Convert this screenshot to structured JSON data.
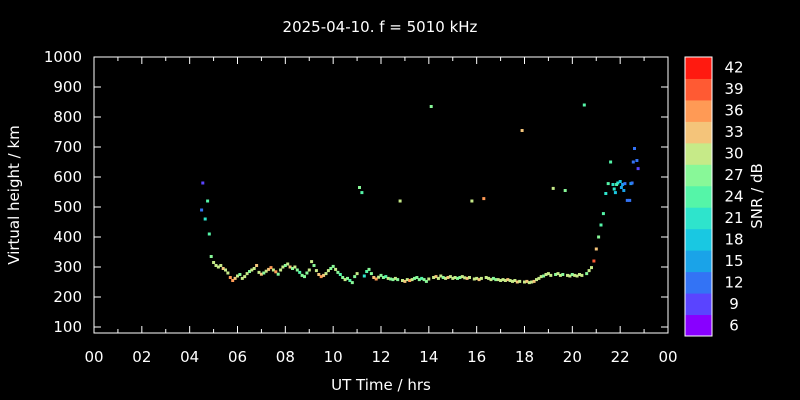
{
  "chart_data": {
    "type": "scatter",
    "title": "2025-04-10. f = 5010 kHz",
    "xlabel": "UT Time / hrs",
    "ylabel": "Virtual height / km",
    "xlim": [
      0,
      24
    ],
    "ylim": [
      80,
      1000
    ],
    "x_ticks": [
      "00",
      "02",
      "04",
      "06",
      "08",
      "10",
      "12",
      "14",
      "16",
      "18",
      "20",
      "22",
      "00"
    ],
    "y_ticks": [
      100,
      200,
      300,
      400,
      500,
      600,
      700,
      800,
      900,
      1000
    ],
    "colorbar": {
      "label": "SNR / dB",
      "range": [
        6,
        42
      ],
      "ticks": [
        6,
        9,
        12,
        15,
        18,
        21,
        24,
        27,
        30,
        33,
        36,
        39,
        42
      ],
      "colors": [
        "#8800ff",
        "#5a44ff",
        "#3373f5",
        "#1aa3e8",
        "#19c8e2",
        "#2ee4cc",
        "#55f5a8",
        "#88f898",
        "#c6ea88",
        "#f4c47a",
        "#ff9a55",
        "#ff5a33",
        "#ff1a10"
      ]
    },
    "points": [
      [
        4.55,
        580,
        10
      ],
      [
        4.5,
        490,
        12
      ],
      [
        4.65,
        460,
        22
      ],
      [
        4.75,
        520,
        24
      ],
      [
        4.82,
        410,
        25
      ],
      [
        4.9,
        335,
        27
      ],
      [
        5.0,
        315,
        30
      ],
      [
        5.1,
        305,
        30
      ],
      [
        5.2,
        300,
        29
      ],
      [
        5.3,
        305,
        30
      ],
      [
        5.4,
        295,
        33
      ],
      [
        5.5,
        290,
        31
      ],
      [
        5.6,
        280,
        30
      ],
      [
        5.7,
        265,
        36
      ],
      [
        5.8,
        255,
        36
      ],
      [
        5.9,
        262,
        33
      ],
      [
        6.0,
        270,
        30
      ],
      [
        6.1,
        275,
        28
      ],
      [
        6.2,
        262,
        30
      ],
      [
        6.3,
        268,
        29
      ],
      [
        6.4,
        278,
        30
      ],
      [
        6.5,
        285,
        28
      ],
      [
        6.6,
        290,
        30
      ],
      [
        6.7,
        295,
        29
      ],
      [
        6.8,
        305,
        33
      ],
      [
        6.9,
        282,
        30
      ],
      [
        7.0,
        276,
        33
      ],
      [
        7.1,
        280,
        28
      ],
      [
        7.2,
        286,
        30
      ],
      [
        7.3,
        292,
        33
      ],
      [
        7.4,
        298,
        36
      ],
      [
        7.5,
        290,
        31
      ],
      [
        7.6,
        284,
        36
      ],
      [
        7.7,
        276,
        28
      ],
      [
        7.8,
        290,
        29
      ],
      [
        7.9,
        300,
        30
      ],
      [
        8.0,
        305,
        28
      ],
      [
        8.1,
        310,
        30
      ],
      [
        8.2,
        300,
        33
      ],
      [
        8.3,
        295,
        28
      ],
      [
        8.4,
        300,
        29
      ],
      [
        8.5,
        290,
        27
      ],
      [
        8.6,
        282,
        24
      ],
      [
        8.7,
        272,
        26
      ],
      [
        8.8,
        268,
        27
      ],
      [
        8.9,
        280,
        28
      ],
      [
        9.0,
        290,
        30
      ],
      [
        9.1,
        318,
        29
      ],
      [
        9.2,
        305,
        27
      ],
      [
        9.3,
        288,
        30
      ],
      [
        9.4,
        275,
        33
      ],
      [
        9.5,
        268,
        36
      ],
      [
        9.6,
        272,
        33
      ],
      [
        9.7,
        278,
        30
      ],
      [
        9.8,
        288,
        29
      ],
      [
        9.9,
        295,
        28
      ],
      [
        10.0,
        302,
        27
      ],
      [
        10.1,
        292,
        30
      ],
      [
        10.2,
        282,
        28
      ],
      [
        10.3,
        275,
        24
      ],
      [
        10.4,
        265,
        26
      ],
      [
        10.5,
        258,
        29
      ],
      [
        10.6,
        262,
        27
      ],
      [
        10.7,
        255,
        24
      ],
      [
        10.8,
        248,
        27
      ],
      [
        10.9,
        268,
        28
      ],
      [
        11.0,
        278,
        29
      ],
      [
        11.1,
        565,
        27
      ],
      [
        11.2,
        548,
        24
      ],
      [
        11.3,
        270,
        21
      ],
      [
        11.4,
        285,
        24
      ],
      [
        11.5,
        292,
        27
      ],
      [
        11.6,
        278,
        28
      ],
      [
        11.7,
        265,
        33
      ],
      [
        11.8,
        260,
        36
      ],
      [
        11.9,
        266,
        30
      ],
      [
        12.0,
        272,
        28
      ],
      [
        12.1,
        265,
        27
      ],
      [
        12.2,
        268,
        24
      ],
      [
        12.3,
        262,
        30
      ],
      [
        12.4,
        260,
        27
      ],
      [
        12.5,
        258,
        28
      ],
      [
        12.6,
        262,
        29
      ],
      [
        12.7,
        258,
        27
      ],
      [
        12.8,
        520,
        29
      ],
      [
        12.9,
        255,
        30
      ],
      [
        13.0,
        252,
        33
      ],
      [
        13.1,
        258,
        30
      ],
      [
        13.2,
        255,
        36
      ],
      [
        13.3,
        258,
        30
      ],
      [
        13.4,
        262,
        28
      ],
      [
        13.5,
        265,
        27
      ],
      [
        13.6,
        258,
        26
      ],
      [
        13.7,
        262,
        24
      ],
      [
        13.8,
        258,
        28
      ],
      [
        13.9,
        252,
        27
      ],
      [
        14.0,
        260,
        29
      ],
      [
        14.1,
        835,
        27
      ],
      [
        14.2,
        265,
        30
      ],
      [
        14.3,
        268,
        33
      ],
      [
        14.4,
        262,
        30
      ],
      [
        14.5,
        270,
        29
      ],
      [
        14.6,
        265,
        28
      ],
      [
        14.7,
        262,
        30
      ],
      [
        14.8,
        265,
        33
      ],
      [
        14.9,
        268,
        30
      ],
      [
        15.0,
        262,
        29
      ],
      [
        15.1,
        265,
        30
      ],
      [
        15.2,
        262,
        27
      ],
      [
        15.3,
        265,
        28
      ],
      [
        15.4,
        268,
        29
      ],
      [
        15.5,
        264,
        30
      ],
      [
        15.6,
        262,
        33
      ],
      [
        15.7,
        265,
        31
      ],
      [
        15.8,
        520,
        30
      ],
      [
        15.9,
        260,
        29
      ],
      [
        16.0,
        262,
        30
      ],
      [
        16.1,
        258,
        33
      ],
      [
        16.2,
        262,
        30
      ],
      [
        16.3,
        528,
        36
      ],
      [
        16.4,
        265,
        30
      ],
      [
        16.5,
        262,
        29
      ],
      [
        16.6,
        258,
        30
      ],
      [
        16.7,
        262,
        27
      ],
      [
        16.8,
        258,
        28
      ],
      [
        16.9,
        258,
        29
      ],
      [
        17.0,
        255,
        30
      ],
      [
        17.1,
        258,
        31
      ],
      [
        17.2,
        255,
        30
      ],
      [
        17.3,
        258,
        33
      ],
      [
        17.4,
        255,
        30
      ],
      [
        17.5,
        252,
        29
      ],
      [
        17.6,
        255,
        30
      ],
      [
        17.7,
        250,
        33
      ],
      [
        17.8,
        252,
        30
      ],
      [
        17.9,
        755,
        33
      ],
      [
        18.0,
        250,
        30
      ],
      [
        18.1,
        252,
        33
      ],
      [
        18.2,
        248,
        30
      ],
      [
        18.3,
        250,
        29
      ],
      [
        18.4,
        252,
        33
      ],
      [
        18.5,
        258,
        30
      ],
      [
        18.6,
        262,
        29
      ],
      [
        18.7,
        268,
        30
      ],
      [
        18.8,
        270,
        28
      ],
      [
        18.9,
        275,
        30
      ],
      [
        19.0,
        278,
        29
      ],
      [
        19.1,
        272,
        30
      ],
      [
        19.2,
        562,
        30
      ],
      [
        19.3,
        275,
        28
      ],
      [
        19.4,
        278,
        29
      ],
      [
        19.5,
        272,
        30
      ],
      [
        19.6,
        275,
        28
      ],
      [
        19.7,
        555,
        27
      ],
      [
        19.8,
        272,
        29
      ],
      [
        19.9,
        270,
        30
      ],
      [
        20.0,
        275,
        28
      ],
      [
        20.1,
        272,
        29
      ],
      [
        20.2,
        270,
        30
      ],
      [
        20.3,
        275,
        31
      ],
      [
        20.4,
        272,
        30
      ],
      [
        20.5,
        840,
        24
      ],
      [
        20.6,
        278,
        27
      ],
      [
        20.7,
        288,
        29
      ],
      [
        20.8,
        298,
        30
      ],
      [
        20.9,
        320,
        38
      ],
      [
        21.0,
        360,
        33
      ],
      [
        21.1,
        400,
        28
      ],
      [
        21.2,
        440,
        25
      ],
      [
        21.3,
        478,
        24
      ],
      [
        21.4,
        545,
        21
      ],
      [
        21.5,
        578,
        24
      ],
      [
        21.6,
        650,
        24
      ],
      [
        21.7,
        575,
        22
      ],
      [
        21.75,
        560,
        21
      ],
      [
        21.8,
        548,
        18
      ],
      [
        21.85,
        575,
        23
      ],
      [
        21.9,
        580,
        21
      ],
      [
        22.0,
        585,
        18
      ],
      [
        22.05,
        565,
        15
      ],
      [
        22.1,
        575,
        15
      ],
      [
        22.15,
        555,
        14
      ],
      [
        22.2,
        578,
        12
      ],
      [
        22.3,
        522,
        12
      ],
      [
        22.4,
        522,
        11
      ],
      [
        22.45,
        578,
        14
      ],
      [
        22.5,
        580,
        12
      ],
      [
        22.55,
        650,
        12
      ],
      [
        22.6,
        695,
        12
      ],
      [
        22.7,
        655,
        12
      ],
      [
        22.75,
        628,
        10
      ]
    ]
  }
}
